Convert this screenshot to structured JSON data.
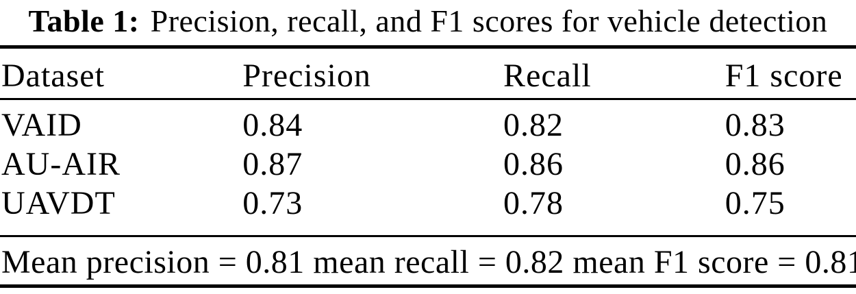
{
  "caption": {
    "label": "Table 1:",
    "text": "Precision, recall, and F1 scores for vehicle detection"
  },
  "table": {
    "columns": [
      "Dataset",
      "Precision",
      "Recall",
      "F1 score"
    ],
    "rows": [
      [
        "VAID",
        "0.84",
        "0.82",
        "0.83"
      ],
      [
        "AU-AIR",
        "0.87",
        "0.86",
        "0.86"
      ],
      [
        "UAVDT",
        "0.73",
        "0.78",
        "0.75"
      ]
    ],
    "footer": "Mean precision = 0.81 mean recall = 0.82 mean F1 score = 0.81"
  },
  "colors": {
    "text": "#000000",
    "background": "#ffffff",
    "rule": "#000000"
  }
}
